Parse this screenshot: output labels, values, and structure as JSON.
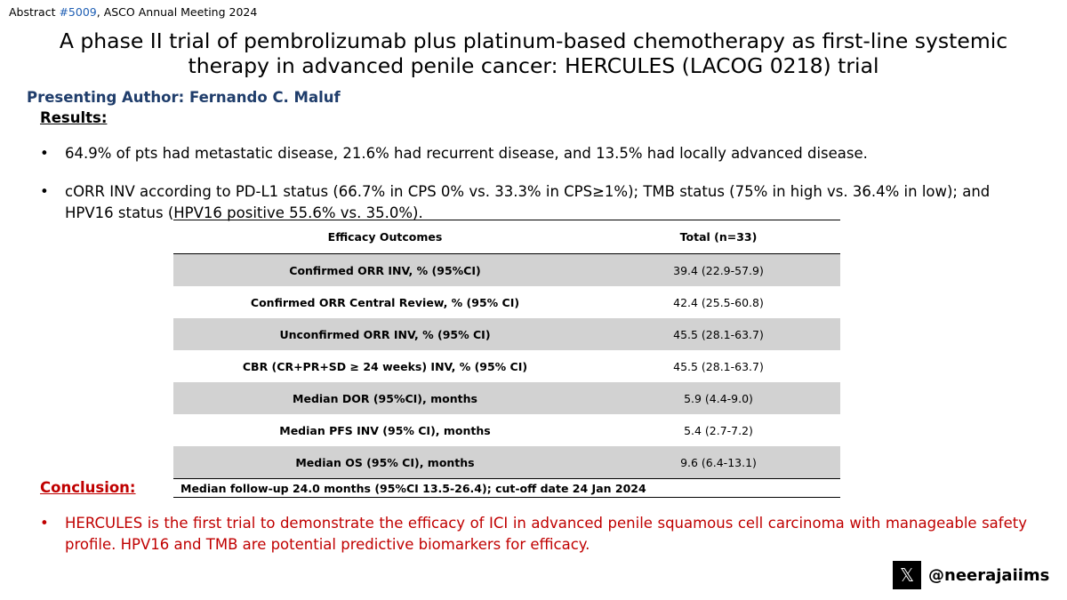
{
  "header": {
    "abstract_prefix": "Abstract ",
    "abstract_link": "#5009",
    "abstract_suffix": ", ASCO Annual Meeting 2024"
  },
  "title": "A phase II trial of pembrolizumab plus platinum-based chemotherapy as first-line systemic therapy in advanced penile cancer: HERCULES (LACOG 0218) trial",
  "author": "Presenting Author: Fernando C. Maluf",
  "results": {
    "heading": "Results:",
    "bullets": [
      "64.9% of pts had metastatic disease, 21.6% had recurrent disease, and 13.5% had locally advanced disease.",
      "cORR INV according to PD-L1 status (66.7% in CPS 0% vs. 33.3% in CPS≥1%); TMB status (75% in high vs. 36.4% in low); and HPV16 status (HPV16 positive 55.6% vs. 35.0%)."
    ]
  },
  "table": {
    "headers": [
      "Efficacy Outcomes",
      "Total (n=33)"
    ],
    "rows": [
      {
        "label": "Confirmed ORR INV, % (95%CI)",
        "value": "39.4 (22.9-57.9)"
      },
      {
        "label": "Confirmed ORR Central Review, % (95% CI)",
        "value": "42.4 (25.5-60.8)"
      },
      {
        "label": "Unconfirmed ORR INV, % (95% CI)",
        "value": "45.5 (28.1-63.7)"
      },
      {
        "label": "CBR (CR+PR+SD ≥ 24 weeks) INV, % (95% CI)",
        "value": "45.5 (28.1-63.7)"
      },
      {
        "label": "Median DOR (95%CI), months",
        "value": "5.9 (4.4-9.0)"
      },
      {
        "label": "Median PFS INV (95% CI), months",
        "value": "5.4 (2.7-7.2)"
      },
      {
        "label": "Median OS (95% CI), months",
        "value": "9.6 (6.4-13.1)"
      }
    ],
    "footnote": "Median follow-up 24.0 months (95%CI 13.5-26.4); cut-off date 24 Jan 2024"
  },
  "conclusion": {
    "heading": "Conclusion:",
    "bullet": "HERCULES is the first trial to demonstrate the efficacy of ICI in advanced penile squamous cell carcinoma with manageable safety profile. HPV16 and TMB are potential predictive biomarkers for efficacy."
  },
  "bullet_glyph": "•",
  "social": {
    "icon": "x-logo-icon",
    "icon_glyph": "𝕏",
    "handle": "@neerajaiims"
  },
  "colors": {
    "author": "#1f3d6b",
    "link": "#1f5fb4",
    "conclusion": "#c00000",
    "table_shade": "#d2d2d2"
  }
}
